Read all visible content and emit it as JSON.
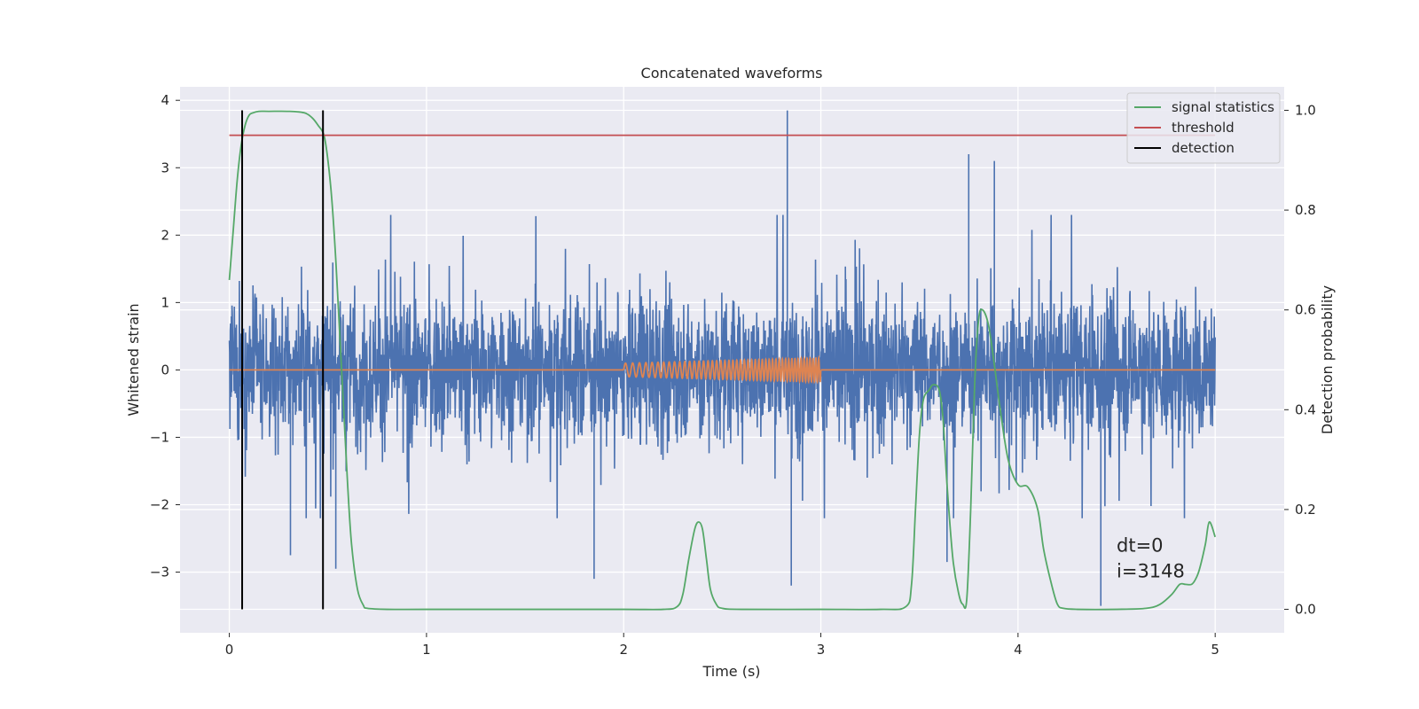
{
  "chart_data": {
    "type": "line",
    "title": "Concatenated waveforms",
    "xlabel": "Time (s)",
    "ylabel": "Whitened strain",
    "y2label": "Detection probability",
    "xlim": [
      -0.25,
      5.35
    ],
    "ylim": [
      -3.9,
      4.2
    ],
    "y2lim": [
      -0.047,
      1.047
    ],
    "xticks": [
      0,
      1,
      2,
      3,
      4,
      5
    ],
    "yticks": [
      -3,
      -2,
      -1,
      0,
      1,
      2,
      3,
      4
    ],
    "y2ticks": [
      0.0,
      0.2,
      0.4,
      0.6,
      0.8,
      1.0
    ],
    "grid": true,
    "legend_position": "top-right",
    "colors": {
      "strain": "#4c72b0",
      "template": "#dd8452",
      "signal_statistics": "#55a868",
      "threshold": "#c44e52",
      "detection": "#000000",
      "background": "#eaeaf2"
    },
    "series": [
      {
        "name": "",
        "axis": "left",
        "kind": "noise",
        "x_range": [
          0,
          5
        ],
        "typical_amplitude": 1.0,
        "envelope_range": [
          -2.2,
          2.3
        ],
        "spikes": [
          {
            "x": 2.83,
            "y": 3.85
          },
          {
            "x": 3.75,
            "y": 3.2
          },
          {
            "x": 3.88,
            "y": 3.1
          },
          {
            "x": 2.85,
            "y": -3.2
          },
          {
            "x": 4.42,
            "y": -3.5
          },
          {
            "x": 1.85,
            "y": -3.1
          },
          {
            "x": 0.31,
            "y": -2.75
          },
          {
            "x": 0.54,
            "y": -2.95
          },
          {
            "x": 3.64,
            "y": -2.85
          }
        ]
      },
      {
        "name": "",
        "axis": "left",
        "kind": "chirp",
        "x_range": [
          0,
          5
        ],
        "chirp_range": [
          2,
          3
        ],
        "chirp_amplitude": [
          0.1,
          0.18
        ]
      },
      {
        "name": "signal statistics",
        "axis": "right",
        "x": [
          0,
          0.02,
          0.04,
          0.06,
          0.08,
          0.1,
          0.12,
          0.15,
          0.2,
          0.3,
          0.38,
          0.42,
          0.45,
          0.48,
          0.5,
          0.52,
          0.54,
          0.56,
          0.58,
          0.6,
          0.62,
          0.65,
          0.68,
          0.7,
          0.8,
          1.0,
          1.5,
          2.0,
          2.2,
          2.27,
          2.3,
          2.33,
          2.36,
          2.38,
          2.4,
          2.42,
          2.44,
          2.47,
          2.5,
          2.6,
          3.0,
          3.3,
          3.43,
          3.46,
          3.48,
          3.5,
          3.52,
          3.55,
          3.57,
          3.6,
          3.62,
          3.64,
          3.67,
          3.7,
          3.72,
          3.74,
          3.76,
          3.78,
          3.8,
          3.82,
          3.85,
          3.88,
          3.91,
          3.95,
          4.0,
          4.05,
          4.1,
          4.13,
          4.17,
          4.2,
          4.23,
          4.3,
          4.5,
          4.65,
          4.72,
          4.78,
          4.82,
          4.85,
          4.88,
          4.9,
          4.92,
          4.95,
          4.97,
          5.0
        ],
        "y": [
          0.66,
          0.76,
          0.86,
          0.93,
          0.97,
          0.99,
          0.995,
          0.998,
          0.998,
          0.998,
          0.995,
          0.985,
          0.97,
          0.95,
          0.9,
          0.82,
          0.7,
          0.55,
          0.4,
          0.25,
          0.13,
          0.04,
          0.008,
          0.002,
          0.0,
          0.0,
          0.0,
          0.0,
          0.0,
          0.005,
          0.03,
          0.1,
          0.16,
          0.175,
          0.16,
          0.1,
          0.04,
          0.01,
          0.002,
          0.0,
          0.0,
          0.0,
          0.005,
          0.05,
          0.2,
          0.35,
          0.42,
          0.44,
          0.45,
          0.44,
          0.38,
          0.25,
          0.1,
          0.03,
          0.01,
          0.02,
          0.2,
          0.45,
          0.58,
          0.6,
          0.57,
          0.49,
          0.4,
          0.3,
          0.25,
          0.245,
          0.2,
          0.12,
          0.05,
          0.01,
          0.002,
          0.0,
          0.0,
          0.002,
          0.01,
          0.03,
          0.05,
          0.05,
          0.05,
          0.06,
          0.08,
          0.13,
          0.175,
          0.145
        ]
      },
      {
        "name": "threshold",
        "axis": "right",
        "x": [
          0,
          5
        ],
        "y": [
          0.95,
          0.95
        ]
      },
      {
        "name": "detection",
        "axis": "right",
        "kind": "vlines",
        "x": [
          0.065,
          0.475
        ],
        "y_range": [
          0.0,
          1.0
        ]
      }
    ],
    "annotations": [
      {
        "text": "dt=0",
        "x": 4.5,
        "y": -2.7
      },
      {
        "text": "i=3148",
        "x": 4.5,
        "y": -3.08
      }
    ]
  }
}
